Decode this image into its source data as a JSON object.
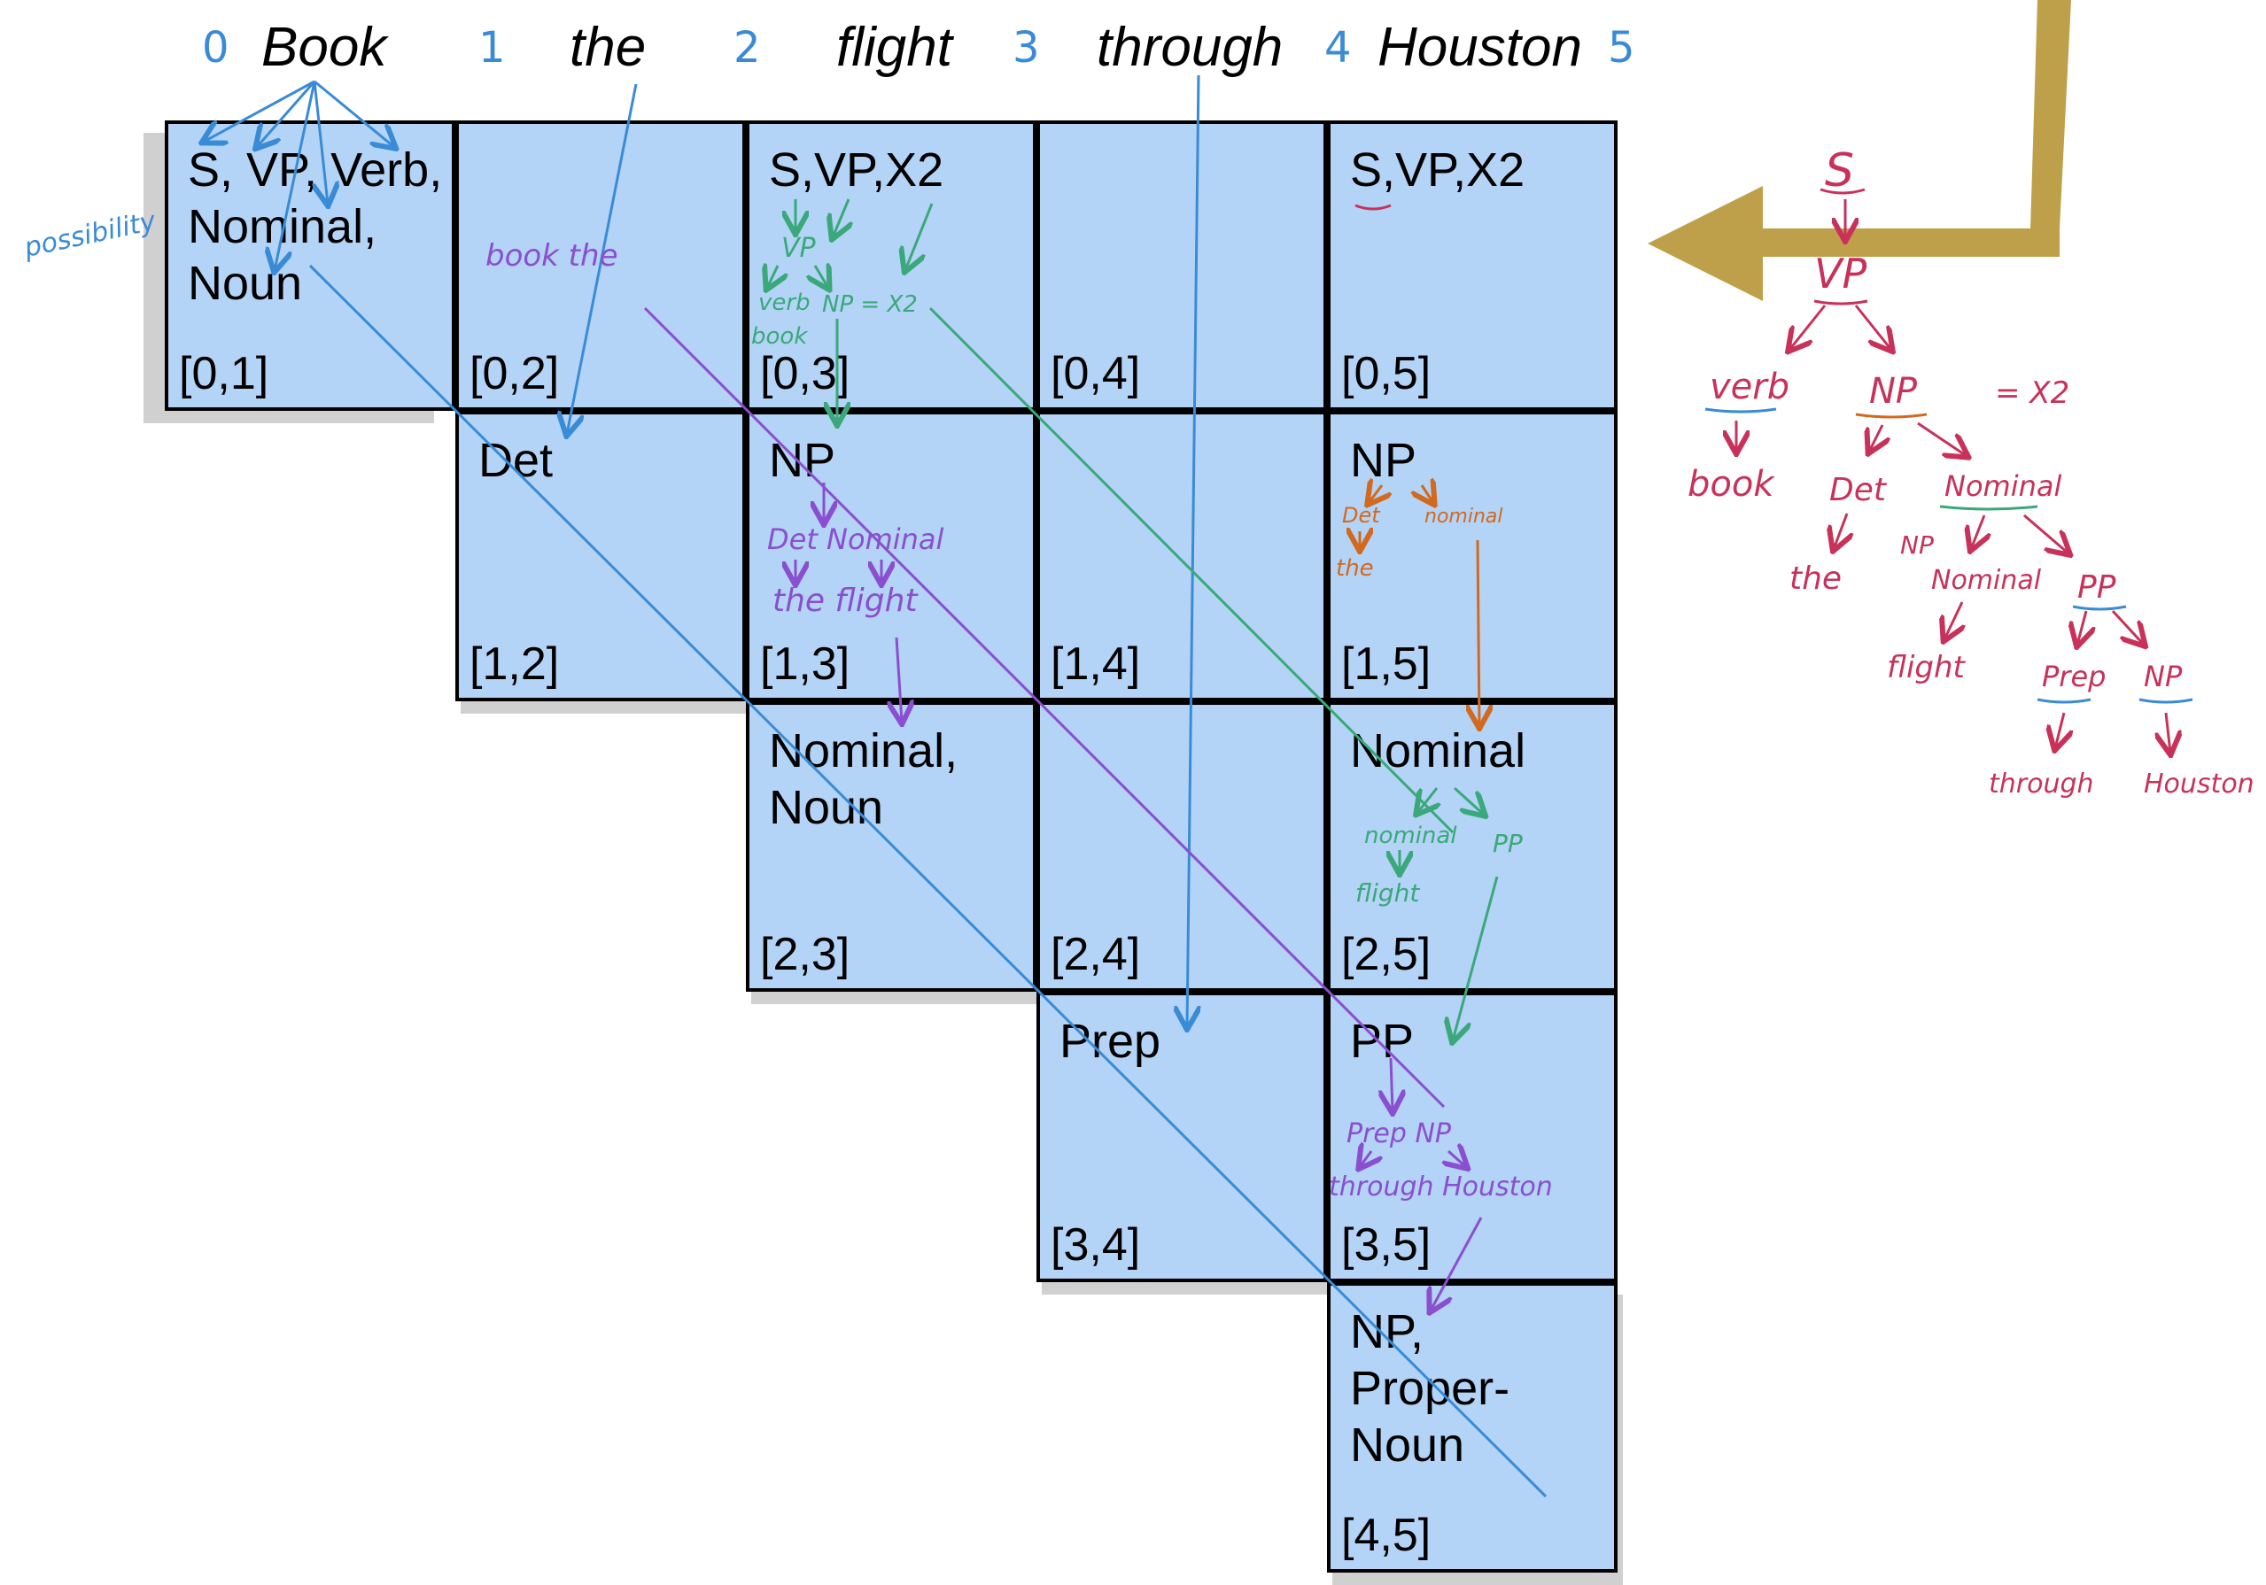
{
  "sentence": {
    "words": [
      "Book",
      "the",
      "flight",
      "through",
      "Houston"
    ],
    "indices": [
      "0",
      "1",
      "2",
      "3",
      "4",
      "5"
    ]
  },
  "table": {
    "cells": [
      {
        "row": 0,
        "col": 1,
        "label": "S, VP, Verb,\nNominal,\nNoun",
        "span": "[0,1]"
      },
      {
        "row": 0,
        "col": 2,
        "label": "",
        "span": "[0,2]"
      },
      {
        "row": 0,
        "col": 3,
        "label": "S,VP,X2",
        "span": "[0,3]"
      },
      {
        "row": 0,
        "col": 4,
        "label": "",
        "span": "[0,4]"
      },
      {
        "row": 0,
        "col": 5,
        "label": "S,VP,X2",
        "span": "[0,5]"
      },
      {
        "row": 1,
        "col": 2,
        "label": "Det",
        "span": "[1,2]"
      },
      {
        "row": 1,
        "col": 3,
        "label": "NP",
        "span": "[1,3]"
      },
      {
        "row": 1,
        "col": 4,
        "label": "",
        "span": "[1,4]"
      },
      {
        "row": 1,
        "col": 5,
        "label": "NP",
        "span": "[1,5]"
      },
      {
        "row": 2,
        "col": 3,
        "label": "Nominal,\nNoun",
        "span": "[2,3]"
      },
      {
        "row": 2,
        "col": 4,
        "label": "",
        "span": "[2,4]"
      },
      {
        "row": 2,
        "col": 5,
        "label": "Nominal",
        "span": "[2,5]"
      },
      {
        "row": 3,
        "col": 4,
        "label": "Prep",
        "span": "[3,4]"
      },
      {
        "row": 3,
        "col": 5,
        "label": "PP",
        "span": "[3,5]"
      },
      {
        "row": 4,
        "col": 5,
        "label": "NP,\nProper-\nNoun",
        "span": "[4,5]"
      }
    ]
  },
  "annotations": {
    "possibility": "possibility",
    "book_the": "book the",
    "cell_03": {
      "vp": "VP",
      "verb": "verb",
      "np_x2": "NP = X2",
      "book": "book"
    },
    "cell_13": {
      "det_nominal": "Det Nominal",
      "the_flight": "the flight"
    },
    "cell_15": {
      "det": "Det",
      "nominal": "nominal",
      "the": "the"
    },
    "cell_25": {
      "nominal": "nominal",
      "pp": "PP",
      "flight": "flight"
    },
    "cell_35": {
      "prep_np": "Prep NP",
      "through_houston": "through Houston"
    }
  },
  "tree": {
    "s": "S",
    "vp": "VP",
    "verb": "verb",
    "np": "NP",
    "eq_x2": "= X2",
    "book": "book",
    "det": "Det",
    "np_small": "NP",
    "nominal": "Nominal",
    "the": "the",
    "nominal2": "Nominal",
    "pp": "PP",
    "flight": "flight",
    "prep": "Prep",
    "np2": "NP",
    "through": "through",
    "houston": "Houston"
  },
  "colors": {
    "cell_fill": "#b3d4f6",
    "blue_ink": "#3a8bd6",
    "green_ink": "#3aa87a",
    "purple_ink": "#8a4fd0",
    "orange_ink": "#d2691e",
    "red_ink": "#c8325a",
    "arrow_gold": "#bfa04a"
  }
}
